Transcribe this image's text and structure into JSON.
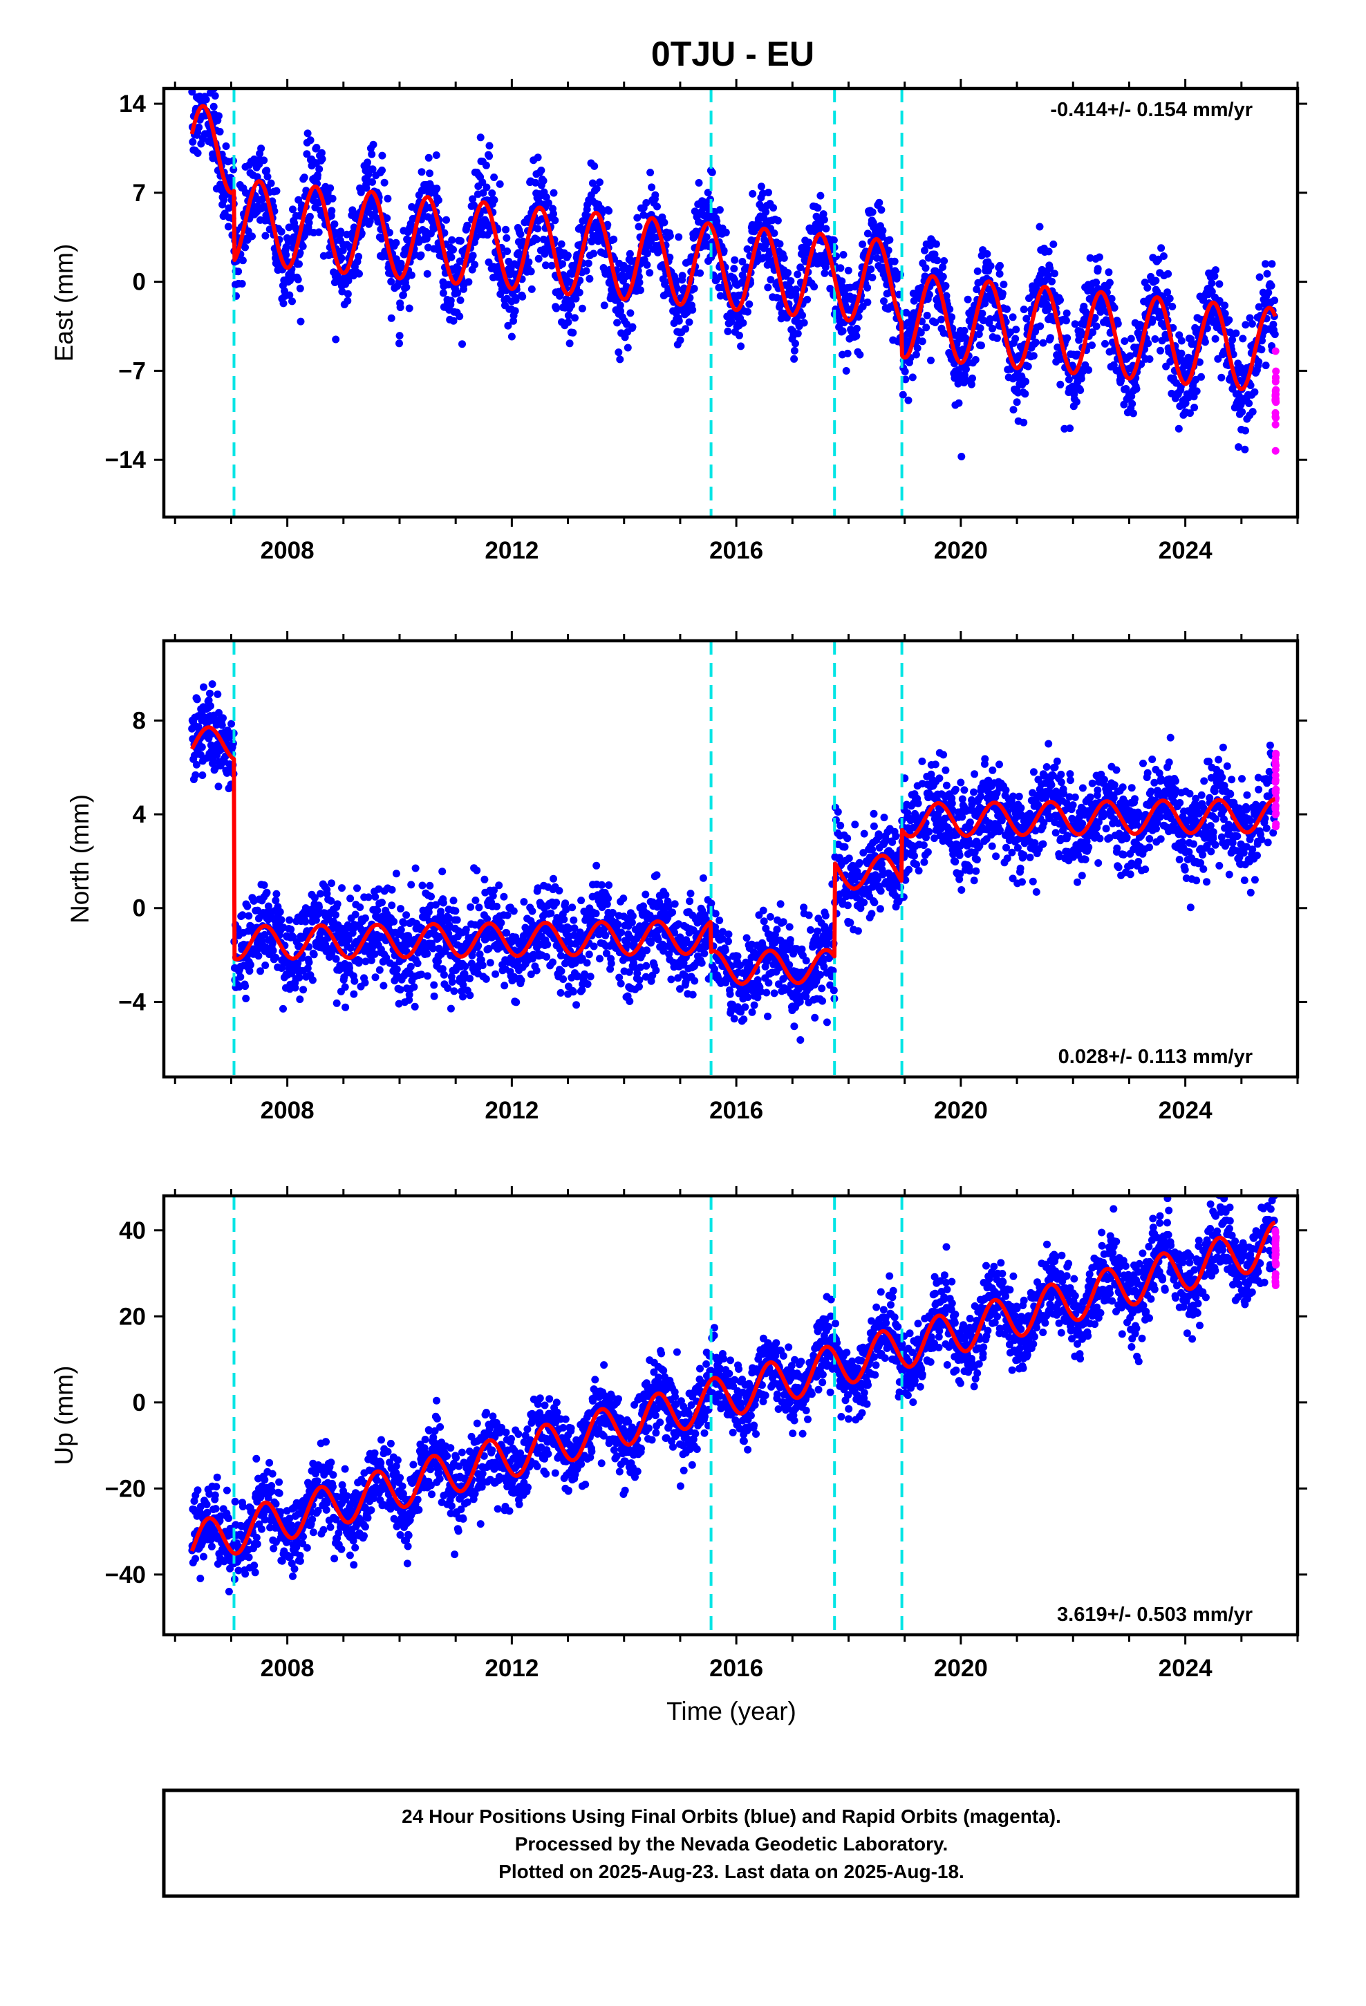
{
  "title": "0TJU - EU",
  "colors": {
    "final_orbits": "#0000ff",
    "rapid_orbits": "#ff00ff",
    "model_fit": "#ff0000",
    "offset_lines": "#00e5e5",
    "frame": "#000000"
  },
  "offset_epochs": [
    2007.05,
    2015.55,
    2017.75,
    2018.95
  ],
  "chart_data": [
    {
      "type": "scatter",
      "panel": "east",
      "ylabel": "East (mm)",
      "xlim": [
        2005.8,
        2026.0
      ],
      "ylim": [
        -18.5,
        15.2
      ],
      "xticks": [
        2008,
        2012,
        2016,
        2020,
        2024
      ],
      "yticks": [
        14,
        7,
        0,
        -7,
        -14
      ],
      "ytick_labels": [
        "14",
        "7",
        "0",
        "−7",
        "−14"
      ],
      "rate_label": "-0.414+/- 0.154 mm/yr",
      "rate_position": "top-right",
      "model": {
        "start": 2006.3,
        "end": 2025.6,
        "intercept": 10.6,
        "slope": -0.414,
        "annual_amplitude": 3.3,
        "annual_phase": 2006.5,
        "steps": [
          [
            2007.05,
            -5.5
          ],
          [
            2018.95,
            -2.5
          ]
        ],
        "early_decay": 0
      },
      "scatter_sd": 1.8,
      "rapid": {
        "start": 2025.4,
        "end": 2025.62,
        "center": -9.5
      }
    },
    {
      "type": "scatter",
      "panel": "north",
      "ylabel": "North (mm)",
      "xlim": [
        2005.8,
        2026.0
      ],
      "ylim": [
        -7.2,
        11.4
      ],
      "xticks": [
        2008,
        2012,
        2016,
        2020,
        2024
      ],
      "yticks": [
        8,
        4,
        0,
        -4
      ],
      "ytick_labels": [
        "8",
        "4",
        "0",
        "−4"
      ],
      "rate_label": "0.028+/- 0.113 mm/yr",
      "rate_position": "bottom-right",
      "model": {
        "start": 2006.3,
        "end": 2025.6,
        "intercept": 7.0,
        "slope": 0.028,
        "annual_amplitude": 0.7,
        "annual_phase": 2006.6,
        "steps": [
          [
            2007.05,
            -8.5
          ],
          [
            2015.55,
            -1.3
          ],
          [
            2017.75,
            4.0
          ],
          [
            2018.95,
            2.2
          ]
        ],
        "early_decay": 0
      },
      "scatter_sd": 1.0,
      "rapid": {
        "start": 2025.4,
        "end": 2025.62,
        "center": 5.5
      }
    },
    {
      "type": "scatter",
      "panel": "up",
      "ylabel": "Up (mm)",
      "xlim": [
        2005.8,
        2026.0
      ],
      "ylim": [
        -54,
        48
      ],
      "xticks": [
        2008,
        2012,
        2016,
        2020,
        2024
      ],
      "yticks": [
        40,
        20,
        0,
        -20,
        -40
      ],
      "ytick_labels": [
        "40",
        "20",
        "0",
        "−20",
        "−40"
      ],
      "rate_label": "3.619+/- 0.503 mm/yr",
      "rate_position": "bottom-right",
      "model": {
        "start": 2006.3,
        "end": 2025.6,
        "intercept": -33,
        "slope": 3.619,
        "annual_amplitude": 5.0,
        "annual_phase": 2006.6,
        "steps": [],
        "early_decay": 0
      },
      "scatter_sd": 4.5,
      "rapid": {
        "start": 2025.4,
        "end": 2025.62,
        "center": 33
      }
    }
  ],
  "xlabel": "Time (year)",
  "footer": {
    "line1": "24 Hour Positions Using Final Orbits (blue) and Rapid Orbits (magenta).",
    "line2": "Processed by the Nevada Geodetic Laboratory.",
    "line3": "Plotted on 2025-Aug-23. Last data on 2025-Aug-18."
  }
}
